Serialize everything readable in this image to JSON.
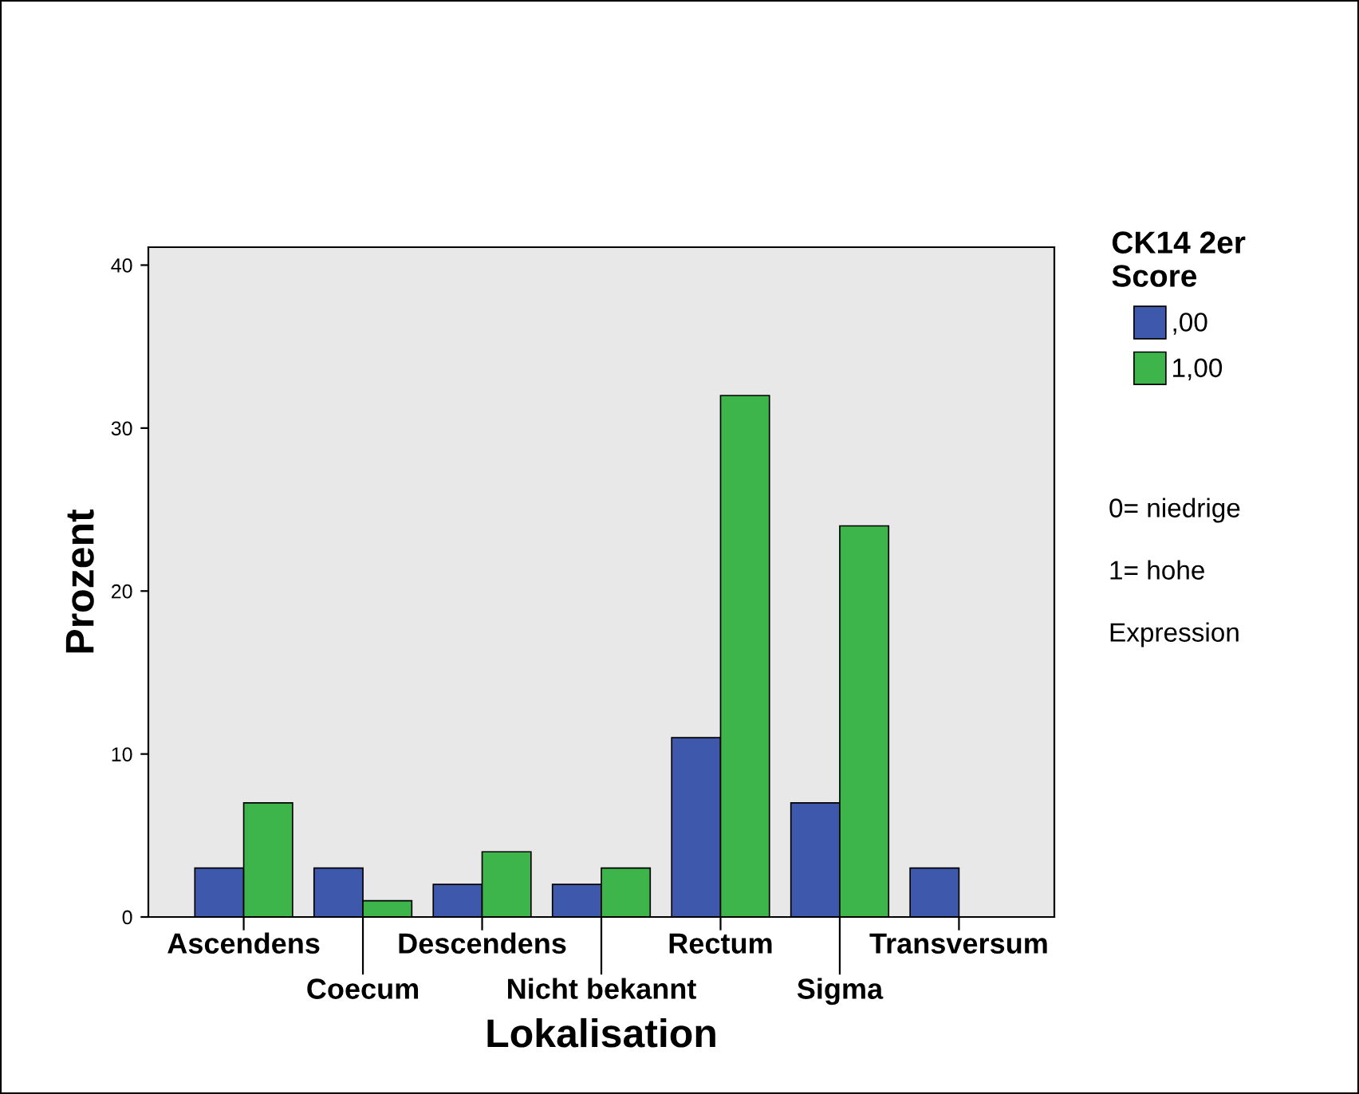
{
  "chart_data": {
    "type": "bar",
    "xlabel": "Lokalisation",
    "ylabel": "Prozent",
    "legend_title": "CK14 2er Score",
    "categories": [
      "Ascendens",
      "Coecum",
      "Descendens",
      "Nicht bekannt",
      "Rectum",
      "Sigma",
      "Transversum"
    ],
    "series": [
      {
        "name": ",00",
        "color": "#3e58ac",
        "values": [
          3,
          3,
          2,
          2,
          11,
          7,
          3
        ]
      },
      {
        "name": "1,00",
        "color": "#3db54a",
        "values": [
          7,
          1,
          4,
          3,
          32,
          24,
          null
        ]
      }
    ],
    "ylim": [
      0,
      41.1
    ],
    "yticks": [
      0,
      10,
      20,
      30,
      40
    ],
    "grid": false,
    "legend": "right",
    "annotations": [
      "0= niedrige",
      "1= hohe",
      "Expression"
    ]
  }
}
